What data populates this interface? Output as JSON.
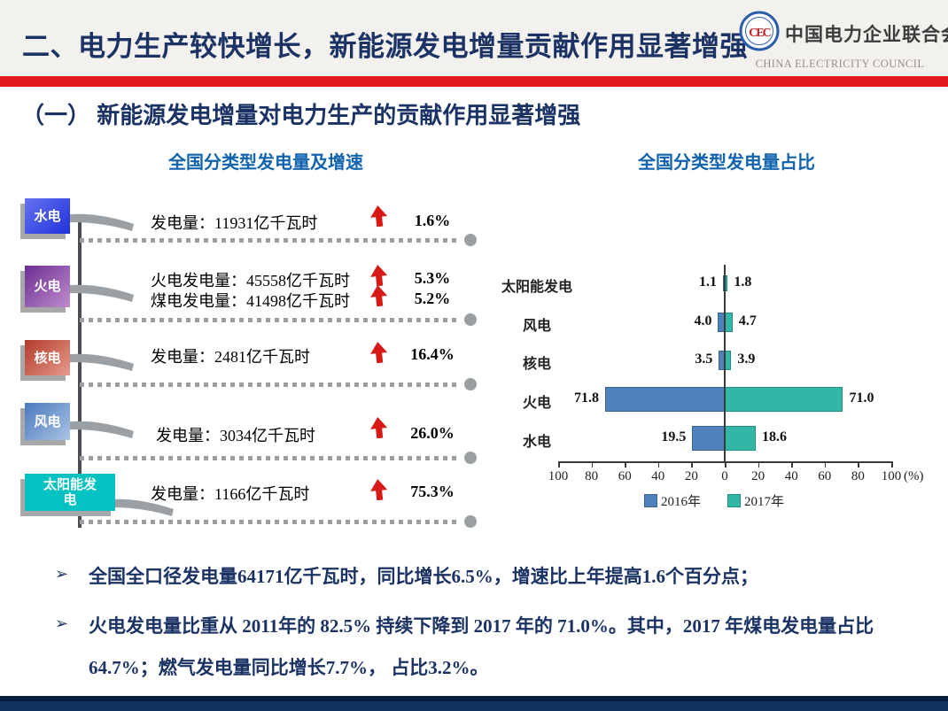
{
  "header": {
    "title": "二、电力生产较快增长，新能源发电增量贡献作用显著增强",
    "logo": {
      "cn": "中国电力企业联合会",
      "en": "CHINA ELECTRICITY COUNCIL"
    }
  },
  "section": {
    "title": "（一）  新能源发电增量对电力生产的贡献作用显著增强"
  },
  "left_chart": {
    "title": "全国分类型发电量及增速",
    "rows": [
      {
        "label": "水电",
        "lines": [
          {
            "text": "发电量：11931亿千瓦时",
            "pct": "1.6%"
          }
        ]
      },
      {
        "label": "火电",
        "lines": [
          {
            "text": "火电发电量：45558亿千瓦时",
            "pct": "5.3%"
          },
          {
            "text": "煤电发电量：41498亿千瓦时",
            "pct": "5.2%"
          }
        ]
      },
      {
        "label": "核电",
        "lines": [
          {
            "text": "发电量：2481亿千瓦时",
            "pct": "16.4%"
          }
        ]
      },
      {
        "label": "风电",
        "lines": [
          {
            "text": "发电量：3034亿千瓦时",
            "pct": "26.0%"
          }
        ]
      },
      {
        "label": "太阳能发电",
        "lines": [
          {
            "text": "发电量：1166亿千瓦时",
            "pct": "75.3%"
          }
        ]
      }
    ]
  },
  "right_chart": {
    "title": "全国分类型发电量占比"
  },
  "chart_data": {
    "type": "bar",
    "subtype": "horizontal-diverging-tornado",
    "title": "全国分类型发电量占比",
    "categories": [
      "太阳能发电",
      "风电",
      "核电",
      "火电",
      "水电"
    ],
    "series": [
      {
        "name": "2016年",
        "side": "left",
        "color": "#4f81bd",
        "border": "#3a6493",
        "values": [
          1.1,
          4.0,
          3.5,
          71.8,
          19.5
        ]
      },
      {
        "name": "2017年",
        "side": "right",
        "color": "#33b6a6",
        "border": "#1d8d7d",
        "values": [
          1.8,
          4.7,
          3.9,
          71.0,
          18.6
        ]
      }
    ],
    "xlabel": "(%)",
    "xlim": [
      -100,
      100
    ],
    "axis_ticks": [
      100,
      80,
      60,
      40,
      20,
      0,
      20,
      40,
      60,
      80,
      100
    ],
    "legend_position": "bottom",
    "value_labels": true,
    "grid": false
  },
  "bullets": [
    {
      "marker": "➢",
      "text": "全国全口径发电量64171亿千瓦时，同比增长6.5%，增速比上年提高1.6个百分点；"
    },
    {
      "marker": "➢",
      "text": "火电发电量比重从 2011年的 82.5% 持续下降到 2017 年的 71.0%。其中，2017 年煤电发电量占比64.7%；燃气发电量同比增长7.7%， 占比3.2%。"
    }
  ],
  "colors": {
    "navy": "#1b3364",
    "red_bar": "#e2191f",
    "chart_title_blue": "#1263ae",
    "bar_2016": "#4f81bd",
    "bar_2017": "#33b6a6",
    "box_hydro": "#2132dc",
    "box_thermal": "#6b2f92",
    "box_nuclear": "#b23a2b",
    "box_wind": "#4a78bd",
    "box_solar": "#05c2c2",
    "arrow_red": "#d81a17"
  }
}
